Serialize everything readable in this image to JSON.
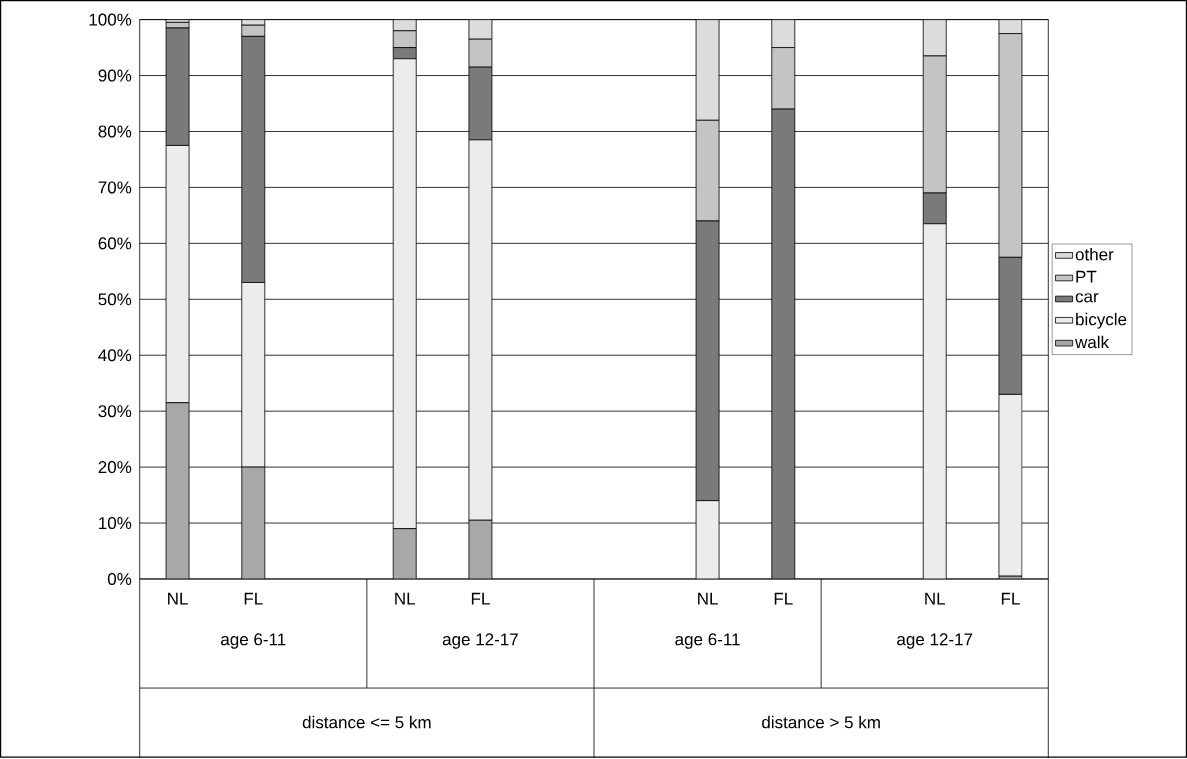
{
  "chart_data": {
    "type": "bar",
    "stacked": true,
    "categories": [
      "NL",
      "FL",
      null,
      "NL",
      "FL",
      null,
      null,
      "NL",
      "FL",
      null,
      "NL",
      "FL"
    ],
    "series": [
      {
        "name": "walk",
        "color": "#a8a8a8",
        "values": [
          31.5,
          20,
          null,
          9,
          10.5,
          null,
          null,
          0,
          0,
          null,
          0,
          0.5
        ]
      },
      {
        "name": "bicycle",
        "color": "#ececec",
        "values": [
          46,
          33,
          null,
          84,
          68,
          null,
          null,
          14,
          0,
          null,
          63.5,
          32.5
        ]
      },
      {
        "name": "car",
        "color": "#7a7a7a",
        "values": [
          21,
          44,
          null,
          2,
          13,
          null,
          null,
          50,
          84,
          null,
          5.5,
          24.5
        ]
      },
      {
        "name": "PT",
        "color": "#c4c4c4",
        "values": [
          1,
          2,
          null,
          3,
          5,
          null,
          null,
          18,
          11,
          null,
          24.5,
          40
        ]
      },
      {
        "name": "other",
        "color": "#dcdcdc",
        "values": [
          0.5,
          1,
          null,
          2,
          3.5,
          null,
          null,
          18,
          5,
          null,
          6.5,
          2.5
        ]
      }
    ],
    "ylim": [
      0,
      100
    ],
    "yticks": [
      {
        "value": 0,
        "label": "0%"
      },
      {
        "value": 10,
        "label": "10%"
      },
      {
        "value": 20,
        "label": "20%"
      },
      {
        "value": 30,
        "label": "30%"
      },
      {
        "value": 40,
        "label": "40%"
      },
      {
        "value": 50,
        "label": "50%"
      },
      {
        "value": 60,
        "label": "60%"
      },
      {
        "value": 70,
        "label": "70%"
      },
      {
        "value": 80,
        "label": "80%"
      },
      {
        "value": 90,
        "label": "90%"
      },
      {
        "value": 100,
        "label": "100%"
      }
    ],
    "grid": "y",
    "legend": "right",
    "annotations": [
      "age 6-11",
      "age 12-17",
      "age 6-11",
      "age 12-17",
      "distance <= 5 km",
      "distance > 5 km"
    ]
  }
}
